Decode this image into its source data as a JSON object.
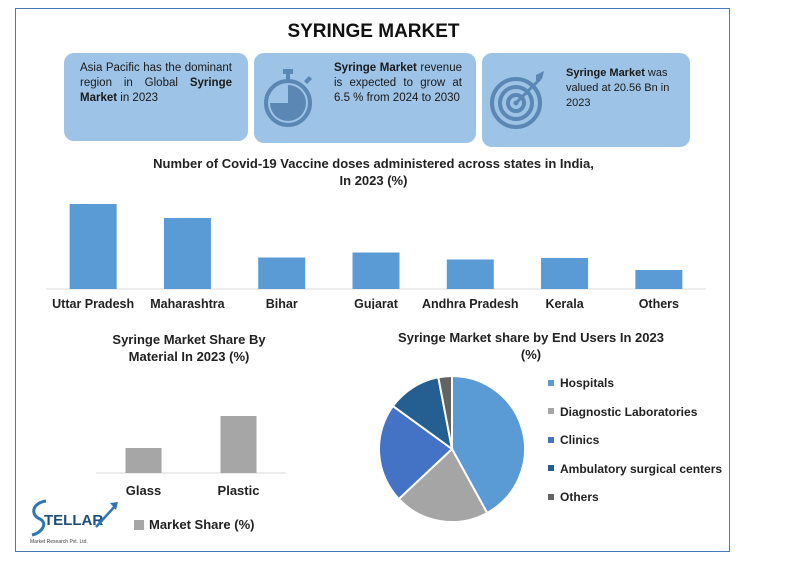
{
  "title": "SYRINGE MARKET",
  "cards": {
    "card1": {
      "pre": "Asia Pacific has the dominant region in Global ",
      "bold": "Syringe Market",
      "post": " in 2023"
    },
    "card2": {
      "bold": "Syringe Market",
      "post": " revenue is expected to grow at 6.5 % from 2024 to 2030"
    },
    "card3": {
      "bold": "Syringe Market",
      "post": " was valued at 20.56 Bn in 2023"
    }
  },
  "logo": {
    "name": "STELLAR",
    "tagline": "Market Research Pvt. Ltd."
  },
  "colors": {
    "card_bg": "#9dc3e6",
    "bar_blue": "#5b9bd5",
    "bar_gray": "#a6a6a6",
    "frame": "#4a78b8"
  },
  "chart_data": [
    {
      "id": "vaccine",
      "type": "bar",
      "title": "Number of Covid-19 Vaccine doses administered across states in India, In 2023 (%)",
      "title_lines": [
        "Number of Covid-19 Vaccine doses administered across states in India,",
        "In 2023 (%)"
      ],
      "categories": [
        "Uttar Pradesh",
        "Maharashtra",
        "Bihar",
        "Gujarat",
        "Andhra Pradesh",
        "Kerala",
        "Others"
      ],
      "values": [
        17,
        14.2,
        6.3,
        7.3,
        5.9,
        6.2,
        3.8
      ],
      "ylim": [
        0,
        18
      ],
      "grid": false,
      "color": "#5b9bd5"
    },
    {
      "id": "material",
      "type": "bar",
      "title": "Syringe Market Share By Material In 2023 (%)",
      "title_lines": [
        "Syringe Market Share By",
        "Material In 2023 (%)"
      ],
      "categories": [
        "Glass",
        "Plastic"
      ],
      "series": [
        {
          "name": "Market Share (%)",
          "values": [
            25,
            57
          ]
        }
      ],
      "ylim": [
        0,
        100
      ],
      "grid": false,
      "legend": "bottom",
      "color": "#a6a6a6"
    },
    {
      "id": "end-users",
      "type": "pie",
      "title": "Syringe Market share by End Users In 2023 (%)",
      "title_lines": [
        "Syringe Market share by End Users In 2023",
        "(%)"
      ],
      "labels": [
        "Hospitals",
        "Diagnostic Laboratories",
        "Clinics",
        "Ambulatory surgical centers",
        "Others"
      ],
      "values": [
        42,
        21,
        22,
        12,
        3
      ],
      "colors": [
        "#5b9bd5",
        "#a5a5a5",
        "#4472c4",
        "#255e91",
        "#636363"
      ],
      "legend": "right"
    }
  ]
}
